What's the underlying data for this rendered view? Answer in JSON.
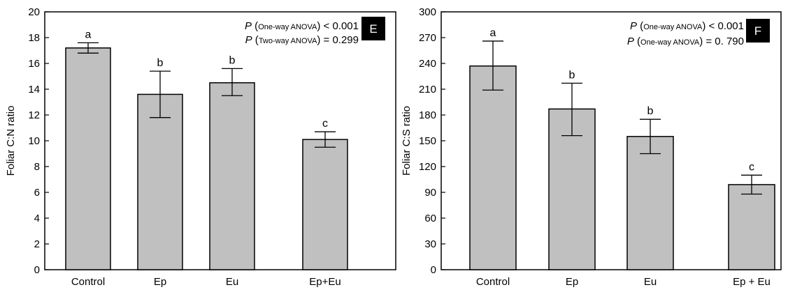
{
  "chart_data": [
    {
      "type": "bar",
      "panel": "E",
      "categories": [
        "Control",
        "Ep",
        "Eu",
        "Ep+Eu"
      ],
      "values": [
        17.2,
        13.6,
        14.5,
        10.1
      ],
      "error_low": [
        16.8,
        11.8,
        13.5,
        9.5
      ],
      "error_high": [
        17.6,
        15.4,
        15.6,
        10.7
      ],
      "letters": [
        "a",
        "b",
        "b",
        "c"
      ],
      "ylabel": "Foliar C:N ratio",
      "xlabel": "",
      "ylim": [
        0,
        20
      ],
      "yticks": [
        0,
        2,
        4,
        6,
        8,
        10,
        12,
        14,
        16,
        18,
        20
      ],
      "bar_color": "#c0c0c0",
      "annotations": [
        {
          "p": "P",
          "paren_open": " (",
          "test": "One-way ANOVA",
          "paren_close": ")",
          "result": " < 0.001"
        },
        {
          "p": "P",
          "paren_open": " (",
          "test": "Two-way ANOVA",
          "paren_close": ")",
          "result": " = 0.299"
        }
      ]
    },
    {
      "type": "bar",
      "panel": "F",
      "categories": [
        "Control",
        "Ep",
        "Eu",
        "Ep + Eu"
      ],
      "values": [
        237,
        187,
        155,
        99
      ],
      "error_low": [
        209,
        156,
        135,
        88
      ],
      "error_high": [
        266,
        217,
        175,
        110
      ],
      "letters": [
        "a",
        "b",
        "b",
        "c"
      ],
      "ylabel": "Foliar C:S ratio",
      "xlabel": "",
      "ylim": [
        0,
        300
      ],
      "yticks": [
        0,
        30,
        60,
        90,
        120,
        150,
        180,
        210,
        240,
        270,
        300
      ],
      "bar_color": "#c0c0c0",
      "annotations": [
        {
          "p": "P",
          "paren_open": " (",
          "test": "One-way ANOVA",
          "paren_close": ")",
          "result": " < 0.001"
        },
        {
          "p": "P",
          "paren_open": " (",
          "test": "One-way ANOVA",
          "paren_close": ")",
          "result": " = 0. 790"
        }
      ]
    }
  ]
}
